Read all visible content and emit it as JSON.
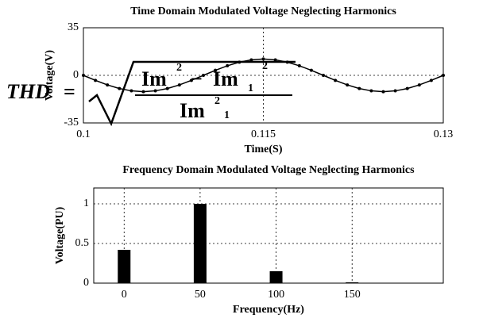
{
  "chart_data": [
    {
      "type": "line",
      "title": "Time Domain Modulated Voltage Neglecting Harmonics",
      "xlabel": "Time(S)",
      "ylabel": "Voltage(V)",
      "x": [
        0.1,
        0.101,
        0.102,
        0.103,
        0.104,
        0.105,
        0.106,
        0.107,
        0.108,
        0.109,
        0.11,
        0.111,
        0.112,
        0.113,
        0.114,
        0.115,
        0.116,
        0.117,
        0.118,
        0.119,
        0.12,
        0.121,
        0.122,
        0.123,
        0.124,
        0.125,
        0.126,
        0.127,
        0.128,
        0.129,
        0.13
      ],
      "series": [
        {
          "color": "#000000",
          "values": [
            0,
            -3.71,
            -7.05,
            -9.71,
            -11.41,
            -12,
            -11.41,
            -9.71,
            -7.05,
            -3.71,
            0,
            3.71,
            7.05,
            9.71,
            11.41,
            12,
            11.41,
            9.71,
            7.05,
            3.71,
            0,
            -3.71,
            -7.05,
            -9.71,
            -11.41,
            -12,
            -11.41,
            -9.71,
            -7.05,
            -3.71,
            0
          ]
        }
      ],
      "xlim": [
        0.1,
        0.13
      ],
      "xticks": [
        0.1,
        0.115,
        0.13
      ],
      "ylim": [
        -35,
        35
      ],
      "yticks": [
        -35,
        0,
        35
      ],
      "grid": true
    },
    {
      "type": "bar",
      "title": "Frequency Domain Modulated Voltage Neglecting Harmonics",
      "xlabel": "Frequency(Hz)",
      "ylabel": "Voltage(PU)",
      "x": [
        0,
        50,
        100,
        150
      ],
      "values": [
        0.42,
        1,
        0.15,
        0.01
      ],
      "color": "#000000",
      "xlim": [
        -20,
        210
      ],
      "xticks": [
        0,
        50,
        100,
        150
      ],
      "ylim": [
        0,
        1.2
      ],
      "yticks": [
        0,
        0.5,
        1
      ],
      "grid": true
    }
  ],
  "formula": {
    "lhs": "THD",
    "eq": "=",
    "num_a": "Im",
    "num_a_sup": "2",
    "minus": "−",
    "num_b": "Im",
    "num_b_sub": "1",
    "num_b_sup": "2",
    "den": "Im",
    "den_sup": "2",
    "den_sub": "1"
  }
}
